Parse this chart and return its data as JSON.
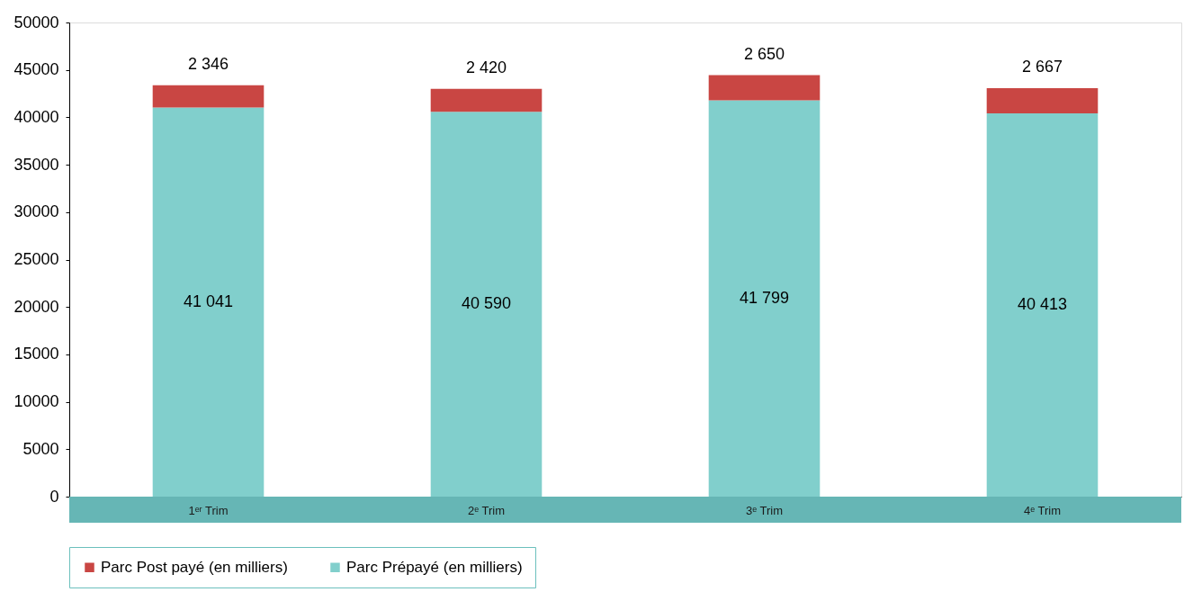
{
  "chart_data": {
    "type": "bar",
    "stacked": true,
    "categories": [
      "1ᵉʳ Trim",
      "2ᵉ Trim",
      "3ᵉ Trim",
      "4ᵉ Trim"
    ],
    "series": [
      {
        "name": "Parc Prépayé (en milliers)",
        "color": "#81cfcc",
        "values": [
          41041,
          40590,
          41799,
          40413
        ],
        "value_labels": [
          "41 041",
          "40 590",
          "41 799",
          "40 413"
        ]
      },
      {
        "name": "Parc Post payé (en milliers)",
        "color": "#c94643",
        "values": [
          2346,
          2420,
          2650,
          2667
        ],
        "value_labels": [
          "2 346",
          "2 420",
          "2 650",
          "2 667"
        ]
      }
    ],
    "ylim": [
      0,
      50000
    ],
    "yticks": [
      0,
      5000,
      10000,
      15000,
      20000,
      25000,
      30000,
      35000,
      40000,
      45000,
      50000
    ],
    "grid": false,
    "legend": "bottom left"
  }
}
